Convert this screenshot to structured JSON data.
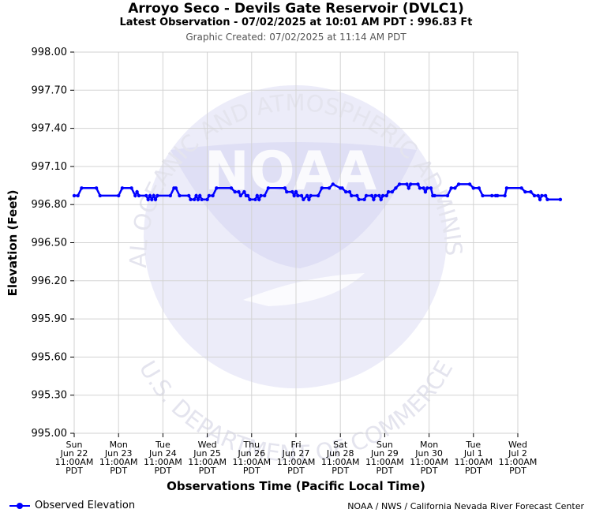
{
  "header": {
    "title": "Arroyo Seco - Devils Gate Reservoir (DVLC1)",
    "subtitle": "Latest Observation - 07/02/2025 at 10:01 AM PDT : 996.83 Ft",
    "created": "Graphic Created: 07/02/2025 at 11:14 AM PDT"
  },
  "watermark": {
    "arc_top": "NATIONAL OCEANIC AND ATMOSPHERIC ADMINISTRATION",
    "arc_bottom": "U.S. DEPARTMENT OF COMMERCE",
    "logo": "NOAA"
  },
  "legend": {
    "label": "Observed Elevation"
  },
  "credit": "NOAA / NWS / California Nevada River Forecast Center",
  "colors": {
    "series": "#0000ff",
    "grid": "#d3d3d3",
    "watermark": "#e8e8f8"
  },
  "chart_data": {
    "type": "line",
    "xlabel": "Observations Time (Pacific Local Time)",
    "ylabel": "Elevation (Feet)",
    "ylim": [
      995.0,
      998.0
    ],
    "yticks": [
      "998.00",
      "997.70",
      "997.40",
      "997.10",
      "996.80",
      "996.50",
      "996.20",
      "995.90",
      "995.60",
      "995.30",
      "995.00"
    ],
    "xticks": [
      [
        "Sun",
        "Jun 22",
        "11:00AM",
        "PDT"
      ],
      [
        "Mon",
        "Jun 23",
        "11:00AM",
        "PDT"
      ],
      [
        "Tue",
        "Jun 24",
        "11:00AM",
        "PDT"
      ],
      [
        "Wed",
        "Jun 25",
        "11:00AM",
        "PDT"
      ],
      [
        "Thu",
        "Jun 26",
        "11:00AM",
        "PDT"
      ],
      [
        "Fri",
        "Jun 27",
        "11:00AM",
        "PDT"
      ],
      [
        "Sat",
        "Jun 28",
        "11:00AM",
        "PDT"
      ],
      [
        "Sun",
        "Jun 29",
        "11:00AM",
        "PDT"
      ],
      [
        "Mon",
        "Jun 30",
        "11:00AM",
        "PDT"
      ],
      [
        "Tue",
        "Jul 1",
        "11:00AM",
        "PDT"
      ],
      [
        "Wed",
        "Jul 2",
        "11:00AM",
        "PDT"
      ]
    ],
    "grid": true,
    "legend_position": "bottom-left",
    "series": [
      {
        "name": "Observed Elevation",
        "points": [
          [
            "2025-06-22 11:00",
            996.87
          ],
          [
            "2025-06-22 13:00",
            996.87
          ],
          [
            "2025-06-22 15:00",
            996.93
          ],
          [
            "2025-06-22 23:00",
            996.93
          ],
          [
            "2025-06-23 01:00",
            996.87
          ],
          [
            "2025-06-23 11:00",
            996.87
          ],
          [
            "2025-06-23 13:00",
            996.93
          ],
          [
            "2025-06-23 18:00",
            996.93
          ],
          [
            "2025-06-23 20:00",
            996.87
          ],
          [
            "2025-06-23 21:00",
            996.9
          ],
          [
            "2025-06-23 22:00",
            996.87
          ],
          [
            "2025-06-24 02:00",
            996.87
          ],
          [
            "2025-06-24 03:00",
            996.84
          ],
          [
            "2025-06-24 04:00",
            996.87
          ],
          [
            "2025-06-24 05:00",
            996.84
          ],
          [
            "2025-06-24 06:00",
            996.87
          ],
          [
            "2025-06-24 07:00",
            996.84
          ],
          [
            "2025-06-24 08:00",
            996.87
          ],
          [
            "2025-06-24 15:00",
            996.87
          ],
          [
            "2025-06-24 17:00",
            996.93
          ],
          [
            "2025-06-24 18:00",
            996.93
          ],
          [
            "2025-06-24 20:00",
            996.87
          ],
          [
            "2025-06-25 01:00",
            996.87
          ],
          [
            "2025-06-25 02:00",
            996.84
          ],
          [
            "2025-06-25 04:00",
            996.84
          ],
          [
            "2025-06-25 05:00",
            996.87
          ],
          [
            "2025-06-25 06:00",
            996.84
          ],
          [
            "2025-06-25 07:00",
            996.87
          ],
          [
            "2025-06-25 08:00",
            996.84
          ],
          [
            "2025-06-25 11:00",
            996.84
          ],
          [
            "2025-06-25 12:00",
            996.87
          ],
          [
            "2025-06-25 14:00",
            996.87
          ],
          [
            "2025-06-25 16:00",
            996.93
          ],
          [
            "2025-06-26 00:00",
            996.93
          ],
          [
            "2025-06-26 02:00",
            996.9
          ],
          [
            "2025-06-26 04:00",
            996.9
          ],
          [
            "2025-06-26 05:00",
            996.87
          ],
          [
            "2025-06-26 07:00",
            996.9
          ],
          [
            "2025-06-26 08:00",
            996.87
          ],
          [
            "2025-06-26 09:00",
            996.87
          ],
          [
            "2025-06-26 10:00",
            996.84
          ],
          [
            "2025-06-26 13:00",
            996.84
          ],
          [
            "2025-06-26 14:00",
            996.87
          ],
          [
            "2025-06-26 15:00",
            996.84
          ],
          [
            "2025-06-26 16:00",
            996.87
          ],
          [
            "2025-06-26 18:00",
            996.87
          ],
          [
            "2025-06-26 20:00",
            996.93
          ],
          [
            "2025-06-27 05:00",
            996.93
          ],
          [
            "2025-06-27 06:00",
            996.9
          ],
          [
            "2025-06-27 09:00",
            996.9
          ],
          [
            "2025-06-27 10:00",
            996.87
          ],
          [
            "2025-06-27 11:00",
            996.9
          ],
          [
            "2025-06-27 12:00",
            996.87
          ],
          [
            "2025-06-27 14:00",
            996.87
          ],
          [
            "2025-06-27 15:00",
            996.84
          ],
          [
            "2025-06-27 17:00",
            996.87
          ],
          [
            "2025-06-27 18:00",
            996.84
          ],
          [
            "2025-06-27 19:00",
            996.87
          ],
          [
            "2025-06-27 23:00",
            996.87
          ],
          [
            "2025-06-28 01:00",
            996.93
          ],
          [
            "2025-06-28 05:00",
            996.93
          ],
          [
            "2025-06-28 07:00",
            996.96
          ],
          [
            "2025-06-28 11:00",
            996.93
          ],
          [
            "2025-06-28 12:00",
            996.93
          ],
          [
            "2025-06-28 14:00",
            996.9
          ],
          [
            "2025-06-28 16:00",
            996.9
          ],
          [
            "2025-06-28 17:00",
            996.87
          ],
          [
            "2025-06-28 20:00",
            996.87
          ],
          [
            "2025-06-28 21:00",
            996.84
          ],
          [
            "2025-06-29 00:00",
            996.84
          ],
          [
            "2025-06-29 01:00",
            996.87
          ],
          [
            "2025-06-29 04:00",
            996.87
          ],
          [
            "2025-06-29 05:00",
            996.84
          ],
          [
            "2025-06-29 06:00",
            996.87
          ],
          [
            "2025-06-29 08:00",
            996.87
          ],
          [
            "2025-06-29 09:00",
            996.84
          ],
          [
            "2025-06-29 10:00",
            996.87
          ],
          [
            "2025-06-29 12:00",
            996.87
          ],
          [
            "2025-06-29 13:00",
            996.9
          ],
          [
            "2025-06-29 15:00",
            996.9
          ],
          [
            "2025-06-29 17:00",
            996.93
          ],
          [
            "2025-06-29 19:00",
            996.96
          ],
          [
            "2025-06-29 23:00",
            996.96
          ],
          [
            "2025-06-30 00:00",
            996.93
          ],
          [
            "2025-06-30 01:00",
            996.96
          ],
          [
            "2025-06-30 05:00",
            996.96
          ],
          [
            "2025-06-30 06:00",
            996.93
          ],
          [
            "2025-06-30 08:00",
            996.93
          ],
          [
            "2025-06-30 09:00",
            996.9
          ],
          [
            "2025-06-30 10:00",
            996.93
          ],
          [
            "2025-06-30 12:00",
            996.93
          ],
          [
            "2025-06-30 13:00",
            996.87
          ],
          [
            "2025-06-30 14:00",
            996.87
          ],
          [
            "2025-06-30 21:00",
            996.87
          ],
          [
            "2025-06-30 23:00",
            996.93
          ],
          [
            "2025-07-01 01:00",
            996.93
          ],
          [
            "2025-07-01 03:00",
            996.96
          ],
          [
            "2025-07-01 09:00",
            996.96
          ],
          [
            "2025-07-01 11:00",
            996.93
          ],
          [
            "2025-07-01 14:00",
            996.93
          ],
          [
            "2025-07-01 16:00",
            996.87
          ],
          [
            "2025-07-01 21:00",
            996.87
          ],
          [
            "2025-07-01 23:00",
            996.87
          ],
          [
            "2025-07-02 00:00",
            996.87
          ],
          [
            "2025-07-02 04:00",
            996.87
          ],
          [
            "2025-07-02 05:00",
            996.93
          ],
          [
            "2025-07-02 13:00",
            996.93
          ],
          [
            "2025-07-02 15:00",
            996.9
          ],
          [
            "2025-07-02 18:00",
            996.9
          ],
          [
            "2025-07-02 20:00",
            996.87
          ],
          [
            "2025-07-02 22:00",
            996.87
          ],
          [
            "2025-07-02 23:00",
            996.84
          ],
          [
            "2025-07-03 00:00",
            996.87
          ],
          [
            "2025-07-03 02:00",
            996.87
          ],
          [
            "2025-07-03 03:00",
            996.84
          ],
          [
            "2025-07-03 10:00",
            996.84
          ]
        ]
      }
    ]
  }
}
